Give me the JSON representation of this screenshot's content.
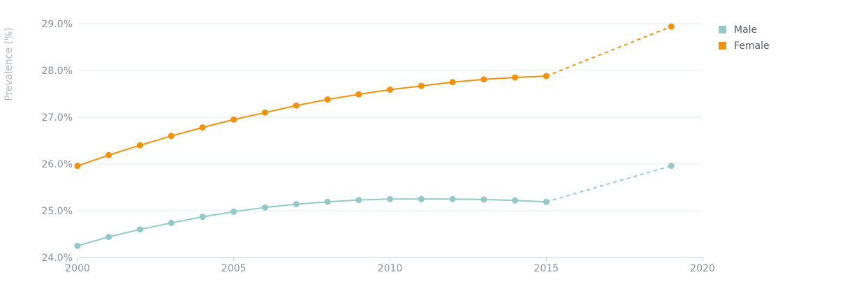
{
  "chart_data": {
    "type": "line",
    "title": "",
    "xlabel": "",
    "ylabel": "Prevalence (%)",
    "xlim": [
      2000,
      2020
    ],
    "ylim": [
      24.0,
      29.0
    ],
    "x_ticks": [
      {
        "value": 2000,
        "label": "2000"
      },
      {
        "value": 2005,
        "label": "2005"
      },
      {
        "value": 2010,
        "label": "2010"
      },
      {
        "value": 2015,
        "label": "2015"
      },
      {
        "value": 2020,
        "label": "2020"
      }
    ],
    "y_ticks": [
      {
        "value": 24.0,
        "label": "24.0%"
      },
      {
        "value": 25.0,
        "label": "25.0%"
      },
      {
        "value": 26.0,
        "label": "26.0%"
      },
      {
        "value": 27.0,
        "label": "27.0%"
      },
      {
        "value": 28.0,
        "label": "28.0%"
      },
      {
        "value": 29.0,
        "label": "29.0%"
      }
    ],
    "grid": true,
    "legend_position": "top-right",
    "projection": {
      "from_x": 2015,
      "to_x": 2019,
      "style": "dashed"
    },
    "series": [
      {
        "name": "Male",
        "color": "#95c9c7",
        "points": [
          {
            "x": 2000,
            "y": 24.25
          },
          {
            "x": 2001,
            "y": 24.44
          },
          {
            "x": 2002,
            "y": 24.6
          },
          {
            "x": 2003,
            "y": 24.74
          },
          {
            "x": 2004,
            "y": 24.87
          },
          {
            "x": 2005,
            "y": 24.98
          },
          {
            "x": 2006,
            "y": 25.07
          },
          {
            "x": 2007,
            "y": 25.14
          },
          {
            "x": 2008,
            "y": 25.19
          },
          {
            "x": 2009,
            "y": 25.23
          },
          {
            "x": 2010,
            "y": 25.25
          },
          {
            "x": 2011,
            "y": 25.25
          },
          {
            "x": 2012,
            "y": 25.25
          },
          {
            "x": 2013,
            "y": 25.24
          },
          {
            "x": 2014,
            "y": 25.22
          },
          {
            "x": 2015,
            "y": 25.19
          },
          {
            "x": 2019,
            "y": 25.96
          }
        ]
      },
      {
        "name": "Female",
        "color": "#f0920d",
        "points": [
          {
            "x": 2000,
            "y": 25.96
          },
          {
            "x": 2001,
            "y": 26.19
          },
          {
            "x": 2002,
            "y": 26.4
          },
          {
            "x": 2003,
            "y": 26.6
          },
          {
            "x": 2004,
            "y": 26.78
          },
          {
            "x": 2005,
            "y": 26.95
          },
          {
            "x": 2006,
            "y": 27.1
          },
          {
            "x": 2007,
            "y": 27.25
          },
          {
            "x": 2008,
            "y": 27.38
          },
          {
            "x": 2009,
            "y": 27.49
          },
          {
            "x": 2010,
            "y": 27.59
          },
          {
            "x": 2011,
            "y": 27.67
          },
          {
            "x": 2012,
            "y": 27.75
          },
          {
            "x": 2013,
            "y": 27.81
          },
          {
            "x": 2014,
            "y": 27.85
          },
          {
            "x": 2015,
            "y": 27.88
          },
          {
            "x": 2019,
            "y": 28.94
          }
        ]
      }
    ]
  }
}
